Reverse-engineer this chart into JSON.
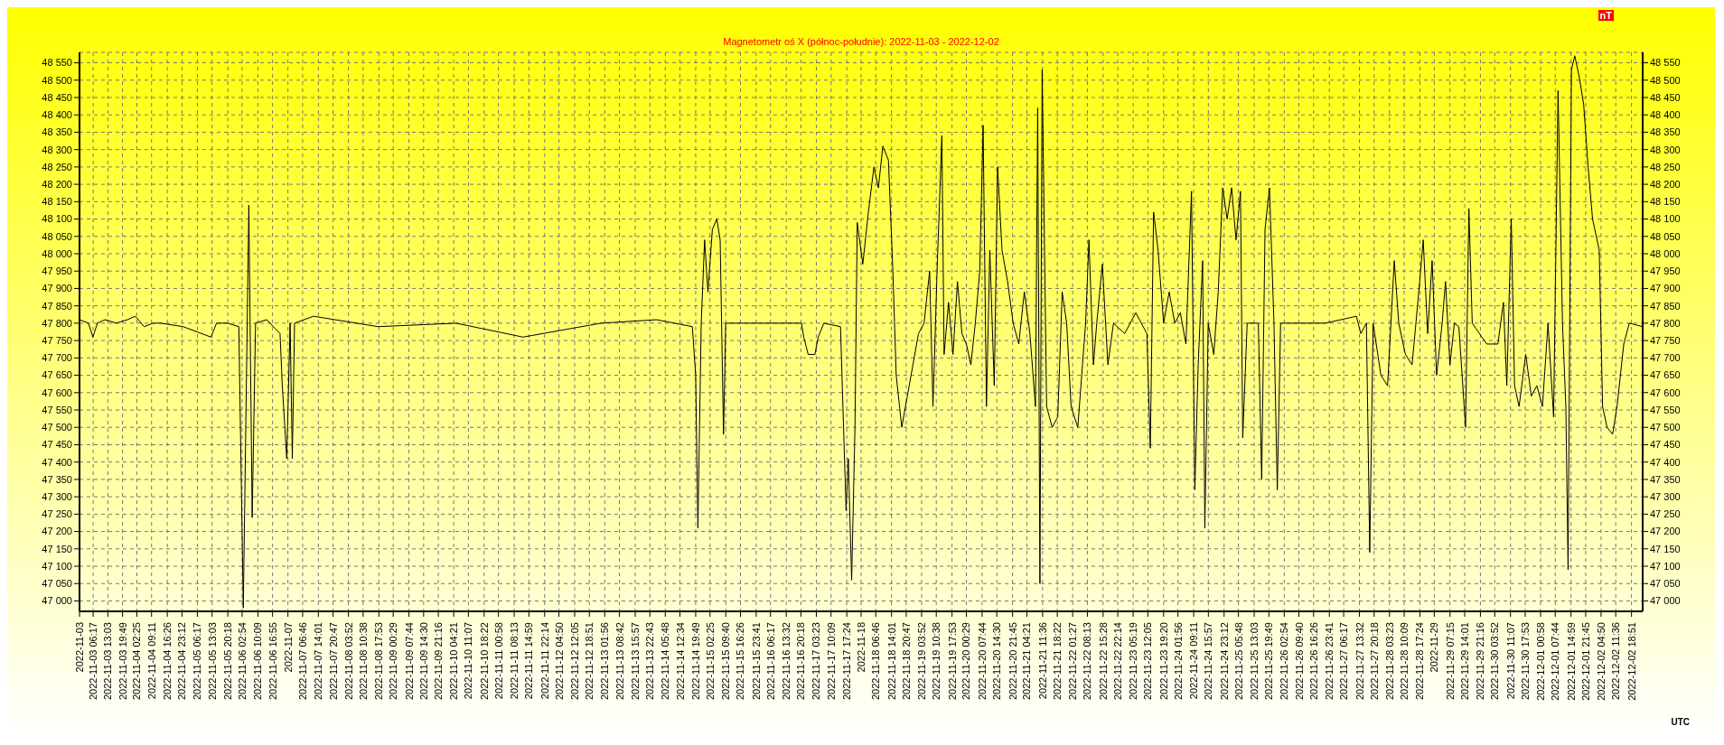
{
  "chart_data": {
    "type": "line",
    "title": "Magnetometr oś X (północ-południe): 2022-11-03 - 2022-12-02",
    "xlabel": "UTC",
    "y2label": "nT",
    "grid": true,
    "marker": "none",
    "line_style": "solid",
    "xlim": [
      "2022-11-03T00:00",
      "2022-12-03T00:00"
    ],
    "xticks": [
      {
        "value": "2022-11-03T00:00",
        "label": "2022-11-03"
      },
      {
        "value": "2022-11-03T06:17",
        "label": "2022-11-03 06:17"
      },
      {
        "value": "2022-11-03T13:03",
        "label": "2022-11-03 13:03"
      },
      {
        "value": "2022-11-03T19:49",
        "label": "2022-11-03 19:49"
      },
      {
        "value": "2022-11-04T02:25",
        "label": "2022-11-04 02:25"
      },
      {
        "value": "2022-11-04T09:11",
        "label": "2022-11-04 09:11"
      },
      {
        "value": "2022-11-04T16:26",
        "label": "2022-11-04 16:26"
      },
      {
        "value": "2022-11-04T23:12",
        "label": "2022-11-04 23:12"
      },
      {
        "value": "2022-11-05T06:17",
        "label": "2022-11-05 06:17"
      },
      {
        "value": "2022-11-05T13:03",
        "label": "2022-11-05 13:03"
      },
      {
        "value": "2022-11-05T20:18",
        "label": "2022-11-05 20:18"
      },
      {
        "value": "2022-11-06T02:54",
        "label": "2022-11-06 02:54"
      },
      {
        "value": "2022-11-06T10:09",
        "label": "2022-11-06 10:09"
      },
      {
        "value": "2022-11-06T16:55",
        "label": "2022-11-06 16:55"
      },
      {
        "value": "2022-11-07T00:00",
        "label": "2022-11-07"
      },
      {
        "value": "2022-11-07T06:46",
        "label": "2022-11-07 06:46"
      },
      {
        "value": "2022-11-07T14:01",
        "label": "2022-11-07 14:01"
      },
      {
        "value": "2022-11-07T20:47",
        "label": "2022-11-07 20:47"
      },
      {
        "value": "2022-11-08T03:52",
        "label": "2022-11-08 03:52"
      },
      {
        "value": "2022-11-08T10:38",
        "label": "2022-11-08 10:38"
      },
      {
        "value": "2022-11-08T17:53",
        "label": "2022-11-08 17:53"
      },
      {
        "value": "2022-11-09T00:29",
        "label": "2022-11-09 00:29"
      },
      {
        "value": "2022-11-09T07:44",
        "label": "2022-11-09 07:44"
      },
      {
        "value": "2022-11-09T14:30",
        "label": "2022-11-09 14:30"
      },
      {
        "value": "2022-11-09T21:16",
        "label": "2022-11-09 21:16"
      },
      {
        "value": "2022-11-10T04:21",
        "label": "2022-11-10 04:21"
      },
      {
        "value": "2022-11-10T11:07",
        "label": "2022-11-10 11:07"
      },
      {
        "value": "2022-11-10T18:22",
        "label": "2022-11-10 18:22"
      },
      {
        "value": "2022-11-11T00:58",
        "label": "2022-11-11 00:58"
      },
      {
        "value": "2022-11-11T08:13",
        "label": "2022-11-11 08:13"
      },
      {
        "value": "2022-11-11T14:59",
        "label": "2022-11-11 14:59"
      },
      {
        "value": "2022-11-11T22:14",
        "label": "2022-11-11 22:14"
      },
      {
        "value": "2022-11-12T04:50",
        "label": "2022-11-12 04:50"
      },
      {
        "value": "2022-11-12T12:05",
        "label": "2022-11-12 12:05"
      },
      {
        "value": "2022-11-12T18:51",
        "label": "2022-11-12 18:51"
      },
      {
        "value": "2022-11-13T01:56",
        "label": "2022-11-13 01:56"
      },
      {
        "value": "2022-11-13T08:42",
        "label": "2022-11-13 08:42"
      },
      {
        "value": "2022-11-13T15:57",
        "label": "2022-11-13 15:57"
      },
      {
        "value": "2022-11-13T22:43",
        "label": "2022-11-13 22:43"
      },
      {
        "value": "2022-11-14T05:48",
        "label": "2022-11-14 05:48"
      },
      {
        "value": "2022-11-14T12:34",
        "label": "2022-11-14 12:34"
      },
      {
        "value": "2022-11-14T19:49",
        "label": "2022-11-14 19:49"
      },
      {
        "value": "2022-11-15T02:25",
        "label": "2022-11-15 02:25"
      },
      {
        "value": "2022-11-15T09:40",
        "label": "2022-11-15 09:40"
      },
      {
        "value": "2022-11-15T16:26",
        "label": "2022-11-15 16:26"
      },
      {
        "value": "2022-11-15T23:41",
        "label": "2022-11-15 23:41"
      },
      {
        "value": "2022-11-16T06:17",
        "label": "2022-11-16 06:17"
      },
      {
        "value": "2022-11-16T13:32",
        "label": "2022-11-16 13:32"
      },
      {
        "value": "2022-11-16T20:18",
        "label": "2022-11-16 20:18"
      },
      {
        "value": "2022-11-17T03:23",
        "label": "2022-11-17 03:23"
      },
      {
        "value": "2022-11-17T10:09",
        "label": "2022-11-17 10:09"
      },
      {
        "value": "2022-11-17T17:24",
        "label": "2022-11-17 17:24"
      },
      {
        "value": "2022-11-18T00:00",
        "label": "2022-11-18"
      },
      {
        "value": "2022-11-18T06:46",
        "label": "2022-11-18 06:46"
      },
      {
        "value": "2022-11-18T14:01",
        "label": "2022-11-18 14:01"
      },
      {
        "value": "2022-11-18T20:47",
        "label": "2022-11-18 20:47"
      },
      {
        "value": "2022-11-19T03:52",
        "label": "2022-11-19 03:52"
      },
      {
        "value": "2022-11-19T10:38",
        "label": "2022-11-19 10:38"
      },
      {
        "value": "2022-11-19T17:53",
        "label": "2022-11-19 17:53"
      },
      {
        "value": "2022-11-20T00:29",
        "label": "2022-11-20 00:29"
      },
      {
        "value": "2022-11-20T07:44",
        "label": "2022-11-20 07:44"
      },
      {
        "value": "2022-11-20T14:30",
        "label": "2022-11-20 14:30"
      },
      {
        "value": "2022-11-20T21:45",
        "label": "2022-11-20 21:45"
      },
      {
        "value": "2022-11-21T04:21",
        "label": "2022-11-21 04:21"
      },
      {
        "value": "2022-11-21T11:36",
        "label": "2022-11-21 11:36"
      },
      {
        "value": "2022-11-21T18:22",
        "label": "2022-11-21 18:22"
      },
      {
        "value": "2022-11-22T01:27",
        "label": "2022-11-22 01:27"
      },
      {
        "value": "2022-11-22T08:13",
        "label": "2022-11-22 08:13"
      },
      {
        "value": "2022-11-22T15:28",
        "label": "2022-11-22 15:28"
      },
      {
        "value": "2022-11-22T22:14",
        "label": "2022-11-22 22:14"
      },
      {
        "value": "2022-11-23T05:19",
        "label": "2022-11-23 05:19"
      },
      {
        "value": "2022-11-23T12:05",
        "label": "2022-11-23 12:05"
      },
      {
        "value": "2022-11-23T19:20",
        "label": "2022-11-23 19:20"
      },
      {
        "value": "2022-11-24T01:56",
        "label": "2022-11-24 01:56"
      },
      {
        "value": "2022-11-24T09:11",
        "label": "2022-11-24 09:11"
      },
      {
        "value": "2022-11-24T15:57",
        "label": "2022-11-24 15:57"
      },
      {
        "value": "2022-11-24T23:12",
        "label": "2022-11-24 23:12"
      },
      {
        "value": "2022-11-25T05:48",
        "label": "2022-11-25 05:48"
      },
      {
        "value": "2022-11-25T13:03",
        "label": "2022-11-25 13:03"
      },
      {
        "value": "2022-11-25T19:49",
        "label": "2022-11-25 19:49"
      },
      {
        "value": "2022-11-26T02:54",
        "label": "2022-11-26 02:54"
      },
      {
        "value": "2022-11-26T09:40",
        "label": "2022-11-26 09:40"
      },
      {
        "value": "2022-11-26T16:26",
        "label": "2022-11-26 16:26"
      },
      {
        "value": "2022-11-26T23:41",
        "label": "2022-11-26 23:41"
      },
      {
        "value": "2022-11-27T06:17",
        "label": "2022-11-27 06:17"
      },
      {
        "value": "2022-11-27T13:32",
        "label": "2022-11-27 13:32"
      },
      {
        "value": "2022-11-27T20:18",
        "label": "2022-11-27 20:18"
      },
      {
        "value": "2022-11-28T03:23",
        "label": "2022-11-28 03:23"
      },
      {
        "value": "2022-11-28T10:09",
        "label": "2022-11-28 10:09"
      },
      {
        "value": "2022-11-28T17:24",
        "label": "2022-11-28 17:24"
      },
      {
        "value": "2022-11-29T00:00",
        "label": "2022-11-29"
      },
      {
        "value": "2022-11-29T07:15",
        "label": "2022-11-29 07:15"
      },
      {
        "value": "2022-11-29T14:01",
        "label": "2022-11-29 14:01"
      },
      {
        "value": "2022-11-29T21:16",
        "label": "2022-11-29 21:16"
      },
      {
        "value": "2022-11-30T03:52",
        "label": "2022-11-30 03:52"
      },
      {
        "value": "2022-11-30T11:07",
        "label": "2022-11-30 11:07"
      },
      {
        "value": "2022-11-30T17:53",
        "label": "2022-11-30 17:53"
      },
      {
        "value": "2022-12-01T00:58",
        "label": "2022-12-01 00:58"
      },
      {
        "value": "2022-12-01T07:44",
        "label": "2022-12-01 07:44"
      },
      {
        "value": "2022-12-01T14:59",
        "label": "2022-12-01 14:59"
      },
      {
        "value": "2022-12-01T21:45",
        "label": "2022-12-01 21:45"
      },
      {
        "value": "2022-12-02T04:50",
        "label": "2022-12-02 04:50"
      },
      {
        "value": "2022-12-02T11:36",
        "label": "2022-12-02 11:36"
      },
      {
        "value": "2022-12-02T18:51",
        "label": "2022-12-02 18:51"
      }
    ],
    "ylim": [
      46970,
      48580
    ],
    "yticks": [
      {
        "value": 47000,
        "label": "47 000"
      },
      {
        "value": 47050,
        "label": "47 050"
      },
      {
        "value": 47100,
        "label": "47 100"
      },
      {
        "value": 47150,
        "label": "47 150"
      },
      {
        "value": 47200,
        "label": "47 200"
      },
      {
        "value": 47250,
        "label": "47 250"
      },
      {
        "value": 47300,
        "label": "47 300"
      },
      {
        "value": 47350,
        "label": "47 350"
      },
      {
        "value": 47400,
        "label": "47 400"
      },
      {
        "value": 47450,
        "label": "47 450"
      },
      {
        "value": 47500,
        "label": "47 500"
      },
      {
        "value": 47550,
        "label": "47 550"
      },
      {
        "value": 47600,
        "label": "47 600"
      },
      {
        "value": 47650,
        "label": "47 650"
      },
      {
        "value": 47700,
        "label": "47 700"
      },
      {
        "value": 47750,
        "label": "47 750"
      },
      {
        "value": 47800,
        "label": "47 800"
      },
      {
        "value": 47850,
        "label": "47 850"
      },
      {
        "value": 47900,
        "label": "47 900"
      },
      {
        "value": 47950,
        "label": "47 950"
      },
      {
        "value": 48000,
        "label": "48 000"
      },
      {
        "value": 48050,
        "label": "48 050"
      },
      {
        "value": 48100,
        "label": "48 100"
      },
      {
        "value": 48150,
        "label": "48 150"
      },
      {
        "value": 48200,
        "label": "48 200"
      },
      {
        "value": 48250,
        "label": "48 250"
      },
      {
        "value": 48300,
        "label": "48 300"
      },
      {
        "value": 48350,
        "label": "48 350"
      },
      {
        "value": 48400,
        "label": "48 400"
      },
      {
        "value": 48450,
        "label": "48 450"
      },
      {
        "value": 48500,
        "label": "48 500"
      },
      {
        "value": 48550,
        "label": "48 550"
      }
    ],
    "y2lim": [
      46970,
      48580
    ],
    "y2ticks": [
      {
        "value": 47000,
        "label": "47 000"
      },
      {
        "value": 47050,
        "label": "47 050"
      },
      {
        "value": 47100,
        "label": "47 100"
      },
      {
        "value": 47150,
        "label": "47 150"
      },
      {
        "value": 47200,
        "label": "47 200"
      },
      {
        "value": 47250,
        "label": "47 250"
      },
      {
        "value": 47300,
        "label": "47 300"
      },
      {
        "value": 47350,
        "label": "47 350"
      },
      {
        "value": 47400,
        "label": "47 400"
      },
      {
        "value": 47450,
        "label": "47 450"
      },
      {
        "value": 47500,
        "label": "47 500"
      },
      {
        "value": 47550,
        "label": "47 550"
      },
      {
        "value": 47600,
        "label": "47 600"
      },
      {
        "value": 47650,
        "label": "47 650"
      },
      {
        "value": 47700,
        "label": "47 700"
      },
      {
        "value": 47750,
        "label": "47 750"
      },
      {
        "value": 47800,
        "label": "47 800"
      },
      {
        "value": 47850,
        "label": "47 850"
      },
      {
        "value": 47900,
        "label": "47 900"
      },
      {
        "value": 47950,
        "label": "47 950"
      },
      {
        "value": 48000,
        "label": "48 000"
      },
      {
        "value": 48050,
        "label": "48 050"
      },
      {
        "value": 48100,
        "label": "48 100"
      },
      {
        "value": 48150,
        "label": "48 150"
      },
      {
        "value": 48200,
        "label": "48 200"
      },
      {
        "value": 48250,
        "label": "48 250"
      },
      {
        "value": 48300,
        "label": "48 300"
      },
      {
        "value": 48350,
        "label": "48 350"
      },
      {
        "value": 48400,
        "label": "48 400"
      },
      {
        "value": 48450,
        "label": "48 450"
      },
      {
        "value": 48500,
        "label": "48 500"
      },
      {
        "value": 48550,
        "label": "48 550"
      }
    ],
    "series": [
      {
        "color": "#000000",
        "x": [
          "2022-11-03T00:00",
          "2022-11-03T04:06",
          "2022-11-03T06:10",
          "2022-11-03T08:13",
          "2022-11-03T11:48",
          "2022-11-03T16:56",
          "2022-11-03T22:04",
          "2022-11-04T01:40",
          "2022-11-04T05:46",
          "2022-11-04T09:52",
          "2022-11-04T13:28",
          "2022-11-04T23:44",
          "2022-11-05T12:34",
          "2022-11-05T15:07",
          "2022-11-05T20:15",
          "2022-11-06T01:23",
          "2022-11-06T03:26",
          "2022-11-06T06:00",
          "2022-11-06T07:32",
          "2022-11-06T09:05",
          "2022-11-06T14:13",
          "2022-11-06T20:22",
          "2022-11-06T21:24",
          "2022-11-06T23:27",
          "2022-11-07T01:00",
          "2022-11-07T02:01",
          "2022-11-07T03:03",
          "2022-11-07T11:46",
          "2022-11-08T17:32",
          "2022-11-10T05:28",
          "2022-11-11T12:16",
          "2022-11-13T00:12",
          "2022-11-14T01:50",
          "2022-11-14T18:16",
          "2022-11-14T19:48",
          "2022-11-14T20:50",
          "2022-11-14T22:22",
          "2022-11-14T23:55",
          "2022-11-15T01:27",
          "2022-11-15T03:30",
          "2022-11-15T05:33",
          "2022-11-15T07:05",
          "2022-11-15T08:38",
          "2022-11-15T09:39",
          "2022-11-16T20:33",
          "2022-11-16T21:35",
          "2022-11-16T23:38",
          "2022-11-17T02:43",
          "2022-11-17T04:15",
          "2022-11-17T06:49",
          "2022-11-17T14:31",
          "2022-11-17T17:05",
          "2022-11-17T18:06",
          "2022-11-17T19:39",
          "2022-11-17T21:11",
          "2022-11-17T22:13",
          "2022-11-18T00:47",
          "2022-11-18T03:21",
          "2022-11-18T05:55",
          "2022-11-18T07:58",
          "2022-11-18T10:01",
          "2022-11-18T12:35",
          "2022-11-18T14:38",
          "2022-11-18T16:10",
          "2022-11-18T18:44",
          "2022-11-18T21:18",
          "2022-11-18T23:52",
          "2022-11-19T02:26",
          "2022-11-19T05:00",
          "2022-11-19T07:34",
          "2022-11-19T09:06",
          "2022-11-19T11:09",
          "2022-11-19T13:12",
          "2022-11-19T14:14",
          "2022-11-19T16:17",
          "2022-11-19T18:20",
          "2022-11-19T20:23",
          "2022-11-19T22:27",
          "2022-11-20T00:30",
          "2022-11-20T02:33",
          "2022-11-20T04:36",
          "2022-11-20T06:39",
          "2022-11-20T08:12",
          "2022-11-20T09:44",
          "2022-11-20T11:17",
          "2022-11-20T13:20",
          "2022-11-20T14:52",
          "2022-11-20T16:55",
          "2022-11-20T19:29",
          "2022-11-20T22:03",
          "2022-11-21T00:37",
          "2022-11-21T03:11",
          "2022-11-21T05:45",
          "2022-11-21T08:19",
          "2022-11-21T09:21",
          "2022-11-21T10:22",
          "2022-11-21T11:24",
          "2022-11-21T13:27",
          "2022-11-21T16:01",
          "2022-11-21T18:35",
          "2022-11-21T20:38",
          "2022-11-21T22:41",
          "2022-11-22T00:44",
          "2022-11-22T03:49",
          "2022-11-22T07:25",
          "2022-11-22T08:57",
          "2022-11-22T11:00",
          "2022-11-22T12:33",
          "2022-11-22T15:07",
          "2022-11-22T17:41",
          "2022-11-22T20:15",
          "2022-11-23T01:23",
          "2022-11-23T06:31",
          "2022-11-23T11:39",
          "2022-11-23T13:12",
          "2022-11-23T14:44",
          "2022-11-23T16:47",
          "2022-11-23T19:21",
          "2022-11-23T21:55",
          "2022-11-24T00:29",
          "2022-11-24T03:03",
          "2022-11-24T05:37",
          "2022-11-24T08:11",
          "2022-11-24T09:43",
          "2022-11-24T11:16",
          "2022-11-24T13:19",
          "2022-11-24T14:20",
          "2022-11-24T15:53",
          "2022-11-24T18:27",
          "2022-11-24T20:30",
          "2022-11-24T22:33",
          "2022-11-25T00:36",
          "2022-11-25T02:39",
          "2022-11-25T04:42",
          "2022-11-25T06:45",
          "2022-11-25T07:47",
          "2022-11-25T09:50",
          "2022-11-25T14:58",
          "2022-11-25T16:31",
          "2022-11-25T18:03",
          "2022-11-25T20:06",
          "2022-11-25T22:10",
          "2022-11-25T23:42",
          "2022-11-26T01:14",
          "2022-11-26T21:45",
          "2022-11-27T12:08",
          "2022-11-27T14:11",
          "2022-11-27T16:45",
          "2022-11-27T18:17",
          "2022-11-27T19:50",
          "2022-11-27T23:26",
          "2022-11-28T02:30",
          "2022-11-28T05:35",
          "2022-11-28T07:38",
          "2022-11-28T10:43",
          "2022-11-28T13:47",
          "2022-11-28T16:52",
          "2022-11-28T18:55",
          "2022-11-28T20:58",
          "2022-11-28T23:01",
          "2022-11-29T01:05",
          "2022-11-29T03:38",
          "2022-11-29T05:11",
          "2022-11-29T07:14",
          "2022-11-29T09:17",
          "2022-11-29T11:20",
          "2022-11-29T14:25",
          "2022-11-29T15:57",
          "2022-11-29T17:30",
          "2022-11-30T00:10",
          "2022-11-30T05:18",
          "2022-11-30T07:52",
          "2022-11-30T09:25",
          "2022-11-30T11:28",
          "2022-11-30T13:00",
          "2022-11-30T15:04",
          "2022-11-30T18:08",
          "2022-11-30T20:42",
          "2022-11-30T23:16",
          "2022-12-01T01:50",
          "2022-12-01T04:24",
          "2022-12-01T06:58",
          "2022-12-01T09:01",
          "2022-12-01T11:04",
          "2022-12-01T12:37",
          "2022-12-01T13:38",
          "2022-12-01T15:11",
          "2022-12-01T16:43",
          "2022-12-01T18:46",
          "2022-12-01T20:49",
          "2022-12-01T22:52",
          "2022-12-02T00:55",
          "2022-12-02T04:00",
          "2022-12-02T05:32",
          "2022-12-02T07:35",
          "2022-12-02T10:09",
          "2022-12-02T12:12",
          "2022-12-02T15:17",
          "2022-12-02T17:51",
          "2022-12-03T00:00"
        ],
        "values": [
          47810,
          47800,
          47760,
          47800,
          47810,
          47800,
          47810,
          47820,
          47790,
          47800,
          47800,
          47790,
          47760,
          47800,
          47800,
          47790,
          46980,
          48140,
          47240,
          47800,
          47810,
          47770,
          47620,
          47410,
          47800,
          47410,
          47800,
          47820,
          47790,
          47800,
          47760,
          47800,
          47810,
          47790,
          47650,
          47210,
          47800,
          48040,
          47890,
          48070,
          48100,
          48040,
          47480,
          47800,
          47800,
          47760,
          47710,
          47710,
          47760,
          47800,
          47790,
          47260,
          47410,
          47060,
          47500,
          48090,
          47970,
          48120,
          48250,
          48190,
          48310,
          48270,
          47950,
          47650,
          47500,
          47590,
          47680,
          47770,
          47800,
          47950,
          47560,
          47980,
          48340,
          47710,
          47860,
          47710,
          47920,
          47770,
          47740,
          47680,
          47800,
          47950,
          48370,
          47560,
          48010,
          47620,
          48250,
          48010,
          47920,
          47800,
          47740,
          47890,
          47770,
          47560,
          48420,
          47050,
          48530,
          47560,
          47500,
          47530,
          47890,
          47800,
          47560,
          47500,
          47800,
          48040,
          47680,
          47800,
          47970,
          47680,
          47800,
          47770,
          47830,
          47770,
          47440,
          48120,
          48010,
          47800,
          47890,
          47800,
          47830,
          47740,
          48180,
          47320,
          47680,
          47980,
          47210,
          47800,
          47710,
          47890,
          48190,
          48100,
          48190,
          48040,
          48180,
          47470,
          47800,
          47800,
          47350,
          48070,
          48190,
          47800,
          47320,
          47800,
          47800,
          47820,
          47770,
          47800,
          47140,
          47800,
          47650,
          47620,
          47980,
          47800,
          47710,
          47680,
          47890,
          48040,
          47770,
          47980,
          47650,
          47800,
          47920,
          47680,
          47800,
          47790,
          47500,
          48130,
          47800,
          47740,
          47740,
          47860,
          47620,
          48100,
          47620,
          47560,
          47710,
          47590,
          47620,
          47560,
          47800,
          47530,
          48470,
          47800,
          47560,
          47090,
          48530,
          48570,
          48510,
          48430,
          48250,
          48100,
          48010,
          47560,
          47500,
          47480,
          47560,
          47740,
          47800,
          47790
        ]
      }
    ]
  }
}
